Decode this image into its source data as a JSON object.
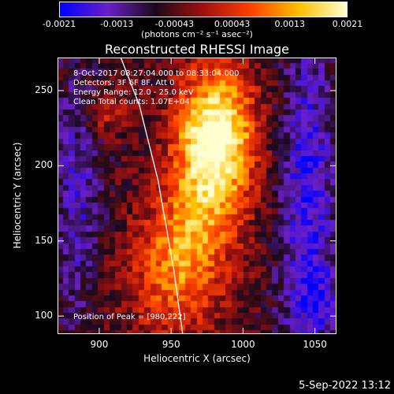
{
  "colorbar": {
    "ticks": [
      "-0.0021",
      "-0.0013",
      "-0.00043",
      "0.00043",
      "0.0013",
      "0.0021"
    ],
    "unit": "(photons cm⁻² s⁻¹ asec⁻²)",
    "colors": [
      "#0000ff",
      "#6a1fc8",
      "#1a0a1a",
      "#a01010",
      "#ff4000",
      "#ffc000",
      "#ffffd0"
    ]
  },
  "annotations": {
    "time": "8-Oct-2017 08:27:04.000 to 08:33:04.000",
    "detectors": "Detectors: 3F 6F 8F, Att 0",
    "energy": "Energy Range: 12.0 - 25.0 keV",
    "clean": "Clean     Total counts: 1.07E+04",
    "peak": "Position of Peak = [980,222]"
  },
  "footer": "5-Sep-2022 13:12",
  "chart_data": {
    "type": "heatmap",
    "title": "Reconstructed RHESSI Image",
    "xlabel": "Heliocentric X (arcsec)",
    "ylabel": "Heliocentric Y (arcsec)",
    "xlim": [
      871,
      1065
    ],
    "ylim": [
      88,
      272
    ],
    "x_ticks": [
      "900",
      "950",
      "1000",
      "1050"
    ],
    "y_ticks": [
      "100",
      "150",
      "200",
      "250"
    ],
    "colorbar_range": [
      -0.0021,
      0.0021
    ],
    "peak": [
      980,
      222
    ],
    "limb_curve": {
      "x": [
        915,
        928,
        941,
        952,
        958
      ],
      "y": [
        272,
        240,
        190,
        130,
        88
      ]
    }
  }
}
